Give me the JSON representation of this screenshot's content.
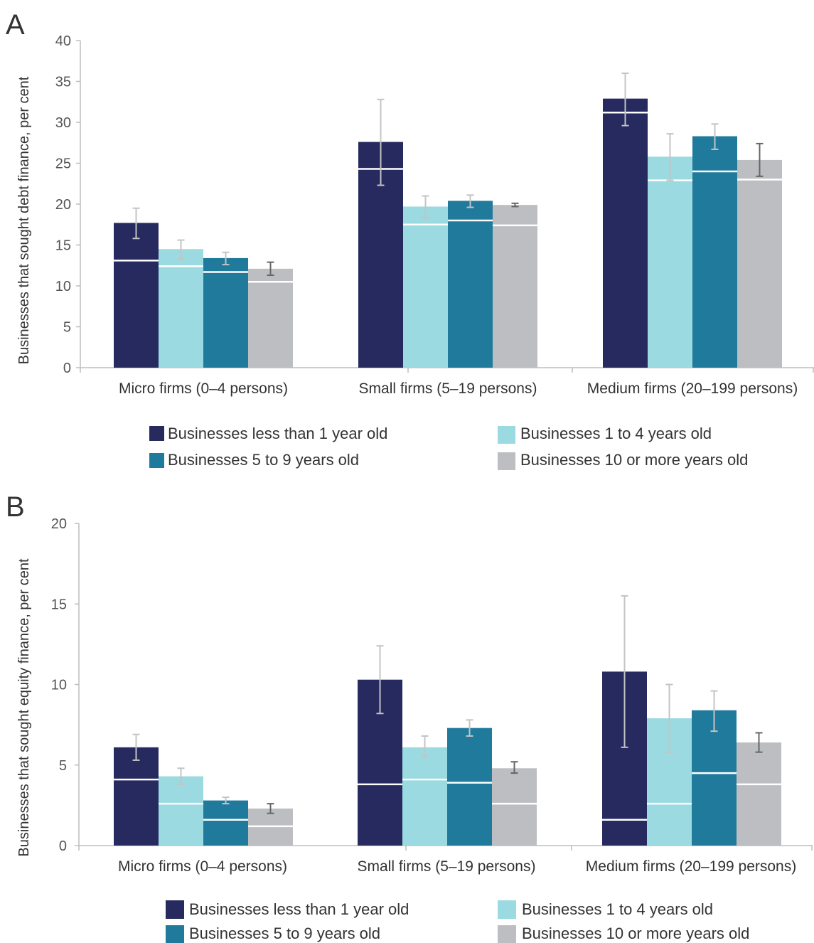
{
  "chart_data": [
    {
      "panel": "A",
      "type": "bar",
      "ylabel": "Businesses that sought debt finance, per cent",
      "ylim": [
        0,
        40
      ],
      "yticks": [
        0,
        5,
        10,
        15,
        20,
        25,
        30,
        35,
        40
      ],
      "categories": [
        "Micro firms (0–4 persons)",
        "Small firms (5–19 persons)",
        "Medium firms (20–199 persons)"
      ],
      "series": [
        {
          "name": "Businesses less than 1 year old",
          "color": "#262a5e",
          "values": [
            17.7,
            27.6,
            32.9
          ],
          "markers": [
            13.1,
            24.3,
            31.2
          ],
          "err_low": [
            15.8,
            22.3,
            29.6
          ],
          "err_high": [
            19.5,
            32.8,
            36.0
          ],
          "err_color": "#c4c4c4"
        },
        {
          "name": "Businesses 1 to 4 years old",
          "color": "#9adae0",
          "values": [
            14.5,
            19.7,
            25.8
          ],
          "markers": [
            12.4,
            17.5,
            22.9
          ],
          "err_low": [
            13.3,
            18.3,
            22.9
          ],
          "err_high": [
            15.6,
            21.0,
            28.6
          ],
          "err_color": "#c4c4c4"
        },
        {
          "name": "Businesses 5 to 9 years old",
          "color": "#207a9c",
          "values": [
            13.4,
            20.4,
            28.3
          ],
          "markers": [
            11.7,
            18.0,
            24.0
          ],
          "err_low": [
            12.6,
            19.6,
            26.7
          ],
          "err_high": [
            14.1,
            21.1,
            29.8
          ],
          "err_color": "#c4c4c4"
        },
        {
          "name": "Businesses 10 or more years old",
          "color": "#bcbec1",
          "values": [
            12.1,
            19.9,
            25.4
          ],
          "markers": [
            10.5,
            17.4,
            23.0
          ],
          "err_low": [
            11.3,
            19.7,
            23.4
          ],
          "err_high": [
            12.9,
            20.1,
            27.4
          ],
          "err_color": "#666666"
        }
      ]
    },
    {
      "panel": "B",
      "type": "bar",
      "ylabel": "Businesses that sought equity  finance, per cent",
      "ylim": [
        0,
        20
      ],
      "yticks": [
        0,
        5,
        10,
        15,
        20
      ],
      "categories": [
        "Micro firms (0–4 persons)",
        "Small firms (5–19 persons)",
        "Medium firms (20–199 persons)"
      ],
      "series": [
        {
          "name": "Businesses less than 1 year old",
          "color": "#262a5e",
          "values": [
            6.1,
            10.3,
            10.8
          ],
          "markers": [
            4.1,
            3.8,
            1.6
          ],
          "err_low": [
            5.3,
            8.2,
            6.1
          ],
          "err_high": [
            6.9,
            12.4,
            15.5
          ],
          "err_color": "#c4c4c4"
        },
        {
          "name": "Businesses 1 to 4 years old",
          "color": "#9adae0",
          "values": [
            4.3,
            6.1,
            7.9
          ],
          "markers": [
            2.6,
            4.1,
            2.6
          ],
          "err_low": [
            3.8,
            5.5,
            5.8
          ],
          "err_high": [
            4.8,
            6.8,
            10.0
          ],
          "err_color": "#c4c4c4"
        },
        {
          "name": "Businesses 5 to 9 years old",
          "color": "#207a9c",
          "values": [
            2.8,
            7.3,
            8.4
          ],
          "markers": [
            1.6,
            3.9,
            4.5
          ],
          "err_low": [
            2.6,
            6.8,
            7.1
          ],
          "err_high": [
            3.0,
            7.8,
            9.6
          ],
          "err_color": "#c4c4c4"
        },
        {
          "name": "Businesses 10 or more years old",
          "color": "#bcbec1",
          "values": [
            2.3,
            4.8,
            6.4
          ],
          "markers": [
            1.2,
            2.6,
            3.8
          ],
          "err_low": [
            2.0,
            4.5,
            5.8
          ],
          "err_high": [
            2.6,
            5.2,
            7.0
          ],
          "err_color": "#666666"
        }
      ]
    }
  ]
}
